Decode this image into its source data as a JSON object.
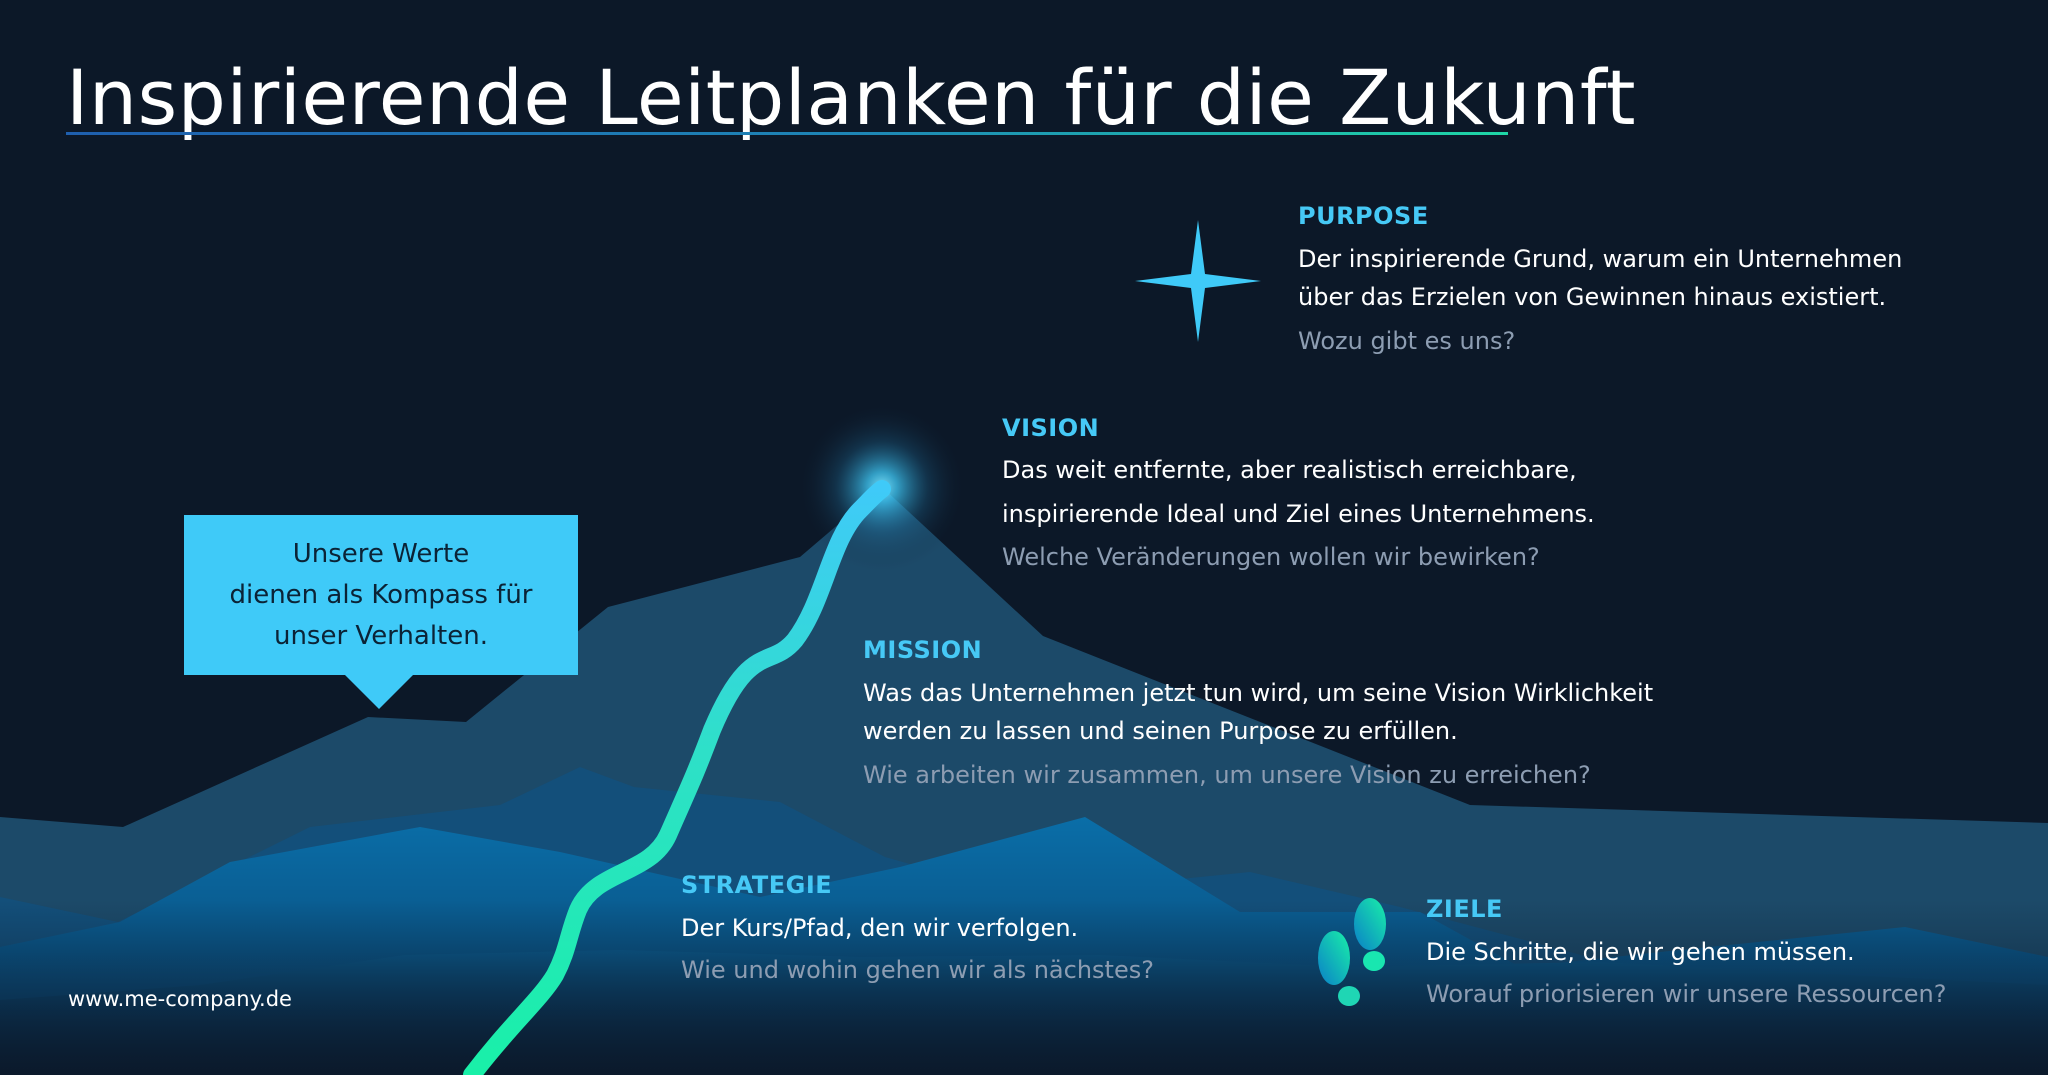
{
  "title": "Inspirierende Leitplanken für die Zukunft",
  "purpose": {
    "label": "PURPOSE",
    "line1": "Der inspirierende Grund, warum ein Unternehmen",
    "line2": "über das Erzielen von Gewinnen hinaus existiert.",
    "question": "Wozu gibt es uns?"
  },
  "vision": {
    "label": "VISION",
    "line1": "Das weit entfernte, aber realistisch erreichbare,",
    "line2": "inspirierende Ideal und Ziel eines Unternehmens.",
    "question": "Welche Veränderungen wollen wir bewirken?"
  },
  "mission": {
    "label": "MISSION",
    "line1": "Was das Unternehmen jetzt tun wird, um seine Vision Wirklichkeit",
    "line2": "werden zu lassen und seinen Purpose zu erfüllen.",
    "question": "Wie arbeiten wir zusammen, um unsere Vision zu erreichen?"
  },
  "strategie": {
    "label": "STRATEGIE",
    "line1": "Der Kurs/Pfad, den wir verfolgen.",
    "question": "Wie und wohin gehen wir als nächstes?"
  },
  "ziele": {
    "label": "ZIELE",
    "line1": "Die Schritte, die wir gehen müssen.",
    "question": "Worauf priorisieren wir unsere Ressourcen?"
  },
  "callout": {
    "text": "Unsere Werte\ndienen als Kompass für\nunser Verhalten."
  },
  "footer": {
    "url": "www.me-company.de"
  },
  "icons": {
    "purpose": "star-icon",
    "vision": "glowing-peak-icon",
    "ziele": "footprints-icon"
  },
  "colors": {
    "background": "#0c1828",
    "accent": "#46c9f6",
    "callout": "#3fcaf8",
    "path_start": "#19f0a8",
    "path_end": "#3fcaf8",
    "muted_text": "#8d9db2"
  }
}
